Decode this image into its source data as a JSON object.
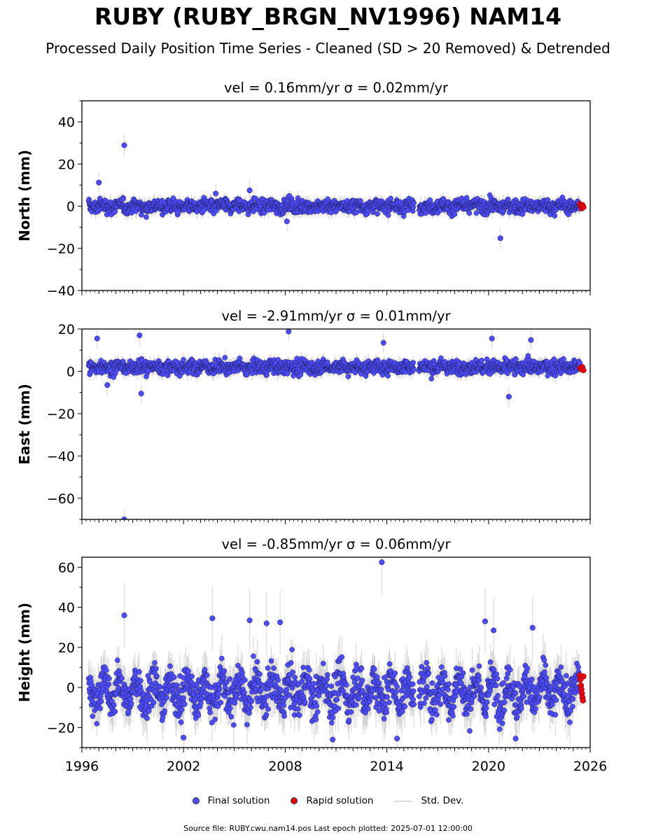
{
  "figure": {
    "title": "RUBY (RUBY_BRGN_NV1996) NAM14",
    "subtitle": "Processed Daily Position Time Series - Cleaned (SD > 20 Removed) & Detrended",
    "source": "Source file: RUBY.cwu.nam14.pos  Last epoch plotted: 2025-07-01 12:00:00",
    "colors": {
      "final": "#4d4dff",
      "rapid": "#e8000b",
      "std": "#b0b0b0"
    }
  },
  "legend": [
    {
      "label": "Final solution",
      "marker": "dot",
      "color": "#4d4dff"
    },
    {
      "label": "Rapid solution",
      "marker": "dot",
      "color": "#e8000b"
    },
    {
      "label": "Std. Dev.",
      "marker": "line",
      "color": "#c0c0c0"
    }
  ],
  "chart_data": [
    {
      "type": "scatter",
      "title": "vel = 0.16mm/yr   σ = 0.02mm/yr",
      "ylabel": "North (mm)",
      "xlim": [
        1996,
        2026
      ],
      "ylim": [
        -40,
        50
      ],
      "yticks": [
        -40,
        -20,
        0,
        20,
        40
      ],
      "xticks": [],
      "series": [
        {
          "name": "Final solution",
          "x_range": [
            1996.4,
            2025.4
          ],
          "gap": [
            2015.6,
            2015.9
          ],
          "center": 0,
          "spread": 2.5,
          "outliers": [
            [
              1998.5,
              28.9
            ],
            [
              2020.7,
              -15.2
            ],
            [
              1997.0,
              11.2
            ],
            [
              2005.9,
              7.5
            ],
            [
              2008.1,
              -7.2
            ],
            [
              2003.9,
              6.0
            ]
          ]
        },
        {
          "name": "Rapid solution",
          "x_range": [
            2025.4,
            2025.6
          ],
          "values": [
            1.0,
            0.0,
            -1.0,
            0.5,
            -0.5
          ]
        }
      ]
    },
    {
      "type": "scatter",
      "title": "vel = -2.91mm/yr   σ = 0.01mm/yr",
      "ylabel": "East (mm)",
      "xlim": [
        1996,
        2026
      ],
      "ylim": [
        -70,
        20
      ],
      "yticks": [
        -60,
        -40,
        -20,
        0,
        20
      ],
      "xticks": [],
      "series": [
        {
          "name": "Final solution",
          "x_range": [
            1996.4,
            2025.4
          ],
          "gap": [
            2015.6,
            2015.9
          ],
          "center": 2,
          "spread": 2.5,
          "outliers": [
            [
              1998.5,
              -70.0
            ],
            [
              2008.2,
              18.8
            ],
            [
              1999.4,
              17.0
            ],
            [
              1996.9,
              15.5
            ],
            [
              2020.2,
              15.5
            ],
            [
              2022.5,
              14.8
            ],
            [
              2013.8,
              13.5
            ],
            [
              2021.2,
              -12.0
            ],
            [
              1999.5,
              -10.5
            ],
            [
              1997.5,
              -6.5
            ]
          ]
        },
        {
          "name": "Rapid solution",
          "x_range": [
            2025.4,
            2025.6
          ],
          "values": [
            1.5,
            1.0,
            2.0,
            0.5
          ]
        }
      ]
    },
    {
      "type": "scatter",
      "title": "vel = -0.85mm/yr   σ = 0.06mm/yr",
      "ylabel": "Height (mm)",
      "xlim": [
        1996,
        2026
      ],
      "ylim": [
        -30,
        65
      ],
      "yticks": [
        -20,
        0,
        20,
        40,
        60
      ],
      "xticks": [
        "1996",
        "2002",
        "2008",
        "2014",
        "2020",
        "2026"
      ],
      "series": [
        {
          "name": "Final solution",
          "x_range": [
            1996.4,
            2025.4
          ],
          "gap": [
            2015.6,
            2015.9
          ],
          "center": -2,
          "spread": 8,
          "outliers": [
            [
              2013.7,
              62.5
            ],
            [
              1998.5,
              36.0
            ],
            [
              2003.7,
              34.5
            ],
            [
              2005.9,
              33.5
            ],
            [
              2019.8,
              33.0
            ],
            [
              2006.9,
              32.0
            ],
            [
              2007.7,
              32.5
            ],
            [
              2022.6,
              29.8
            ],
            [
              2020.3,
              28.5
            ],
            [
              2014.6,
              -25.5
            ],
            [
              2021.6,
              -25.5
            ],
            [
              2002.0,
              -25.0
            ],
            [
              2010.8,
              -26.0
            ]
          ]
        },
        {
          "name": "Rapid solution",
          "x_range": [
            2025.4,
            2025.6
          ],
          "values": [
            6.0,
            4.0,
            1.0,
            -1.0,
            -3.0,
            -5.0,
            -6.5,
            5.5
          ]
        }
      ]
    }
  ]
}
